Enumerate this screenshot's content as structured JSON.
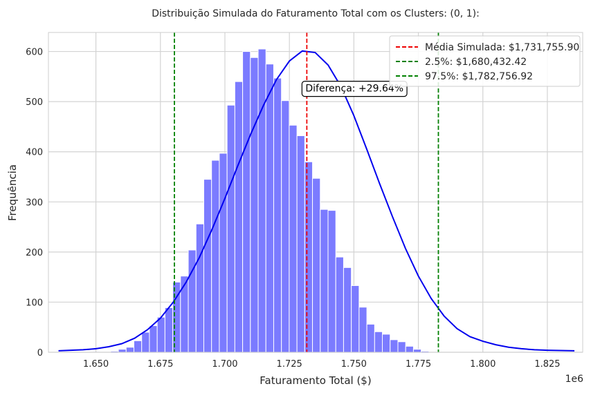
{
  "chart_data": {
    "type": "bar",
    "title": "Distribuição Simulada do Faturamento Total com os Clusters: (0, 1):",
    "xlabel": "Faturamento Total ($)",
    "ylabel": "Frequência",
    "x_offset_label": "1e6",
    "xlim": [
      1.6316,
      1.8387
    ],
    "ylim": [
      0,
      638
    ],
    "x_ticks": [
      1.65,
      1.675,
      1.7,
      1.725,
      1.75,
      1.775,
      1.8,
      1.825
    ],
    "x_tick_labels": [
      "1.650",
      "1.675",
      "1.700",
      "1.725",
      "1.750",
      "1.775",
      "1.800",
      "1.825"
    ],
    "y_ticks": [
      0,
      100,
      200,
      300,
      400,
      500,
      600
    ],
    "y_tick_labels": [
      "0",
      "100",
      "200",
      "300",
      "400",
      "500",
      "600"
    ],
    "grid": true,
    "colors": {
      "bars": "#7b7bff",
      "kde": "#0000ee",
      "mean_line": "#ee0000",
      "ci_lines": "#008000",
      "grid": "#d3d3d3",
      "frame": "#cccccc"
    },
    "histogram": {
      "bin_start": 1.6557,
      "bin_width": 0.00301,
      "counts": [
        2,
        6,
        10,
        23,
        40,
        53,
        70,
        89,
        140,
        152,
        204,
        256,
        345,
        383,
        397,
        493,
        540,
        600,
        588,
        605,
        575,
        547,
        502,
        453,
        432,
        380,
        347,
        285,
        283,
        190,
        169,
        133,
        90,
        56,
        41,
        36,
        25,
        21,
        12,
        6,
        2
      ]
    },
    "kde": {
      "x": [
        1.6355,
        1.645,
        1.65,
        1.655,
        1.66,
        1.665,
        1.67,
        1.675,
        1.68,
        1.685,
        1.69,
        1.695,
        1.7,
        1.705,
        1.71,
        1.715,
        1.72,
        1.725,
        1.73,
        1.735,
        1.74,
        1.745,
        1.75,
        1.755,
        1.76,
        1.765,
        1.77,
        1.775,
        1.78,
        1.785,
        1.79,
        1.795,
        1.8,
        1.805,
        1.81,
        1.815,
        1.82,
        1.825,
        1.8355
      ],
      "y": [
        3,
        5,
        7,
        11,
        17,
        28,
        45,
        68,
        100,
        140,
        188,
        245,
        307,
        372,
        435,
        493,
        544,
        581,
        601,
        598,
        573,
        530,
        472,
        405,
        336,
        270,
        207,
        152,
        107,
        72,
        47,
        31,
        22,
        15,
        10,
        7,
        5,
        4,
        3
      ]
    },
    "vlines": [
      {
        "x": 1.73176,
        "label": "Média Simulada: $1,731,755.90",
        "color": "#ee0000"
      },
      {
        "x": 1.68043,
        "label": "2.5%: $1,680,432.42",
        "color": "#008000"
      },
      {
        "x": 1.78276,
        "label": "97.5%: $1,782,756.92",
        "color": "#008000"
      }
    ],
    "legend_placement": "top-right",
    "annotation": {
      "text": "Diferença: +29.64%",
      "x": 1.73176,
      "y": 520
    }
  }
}
